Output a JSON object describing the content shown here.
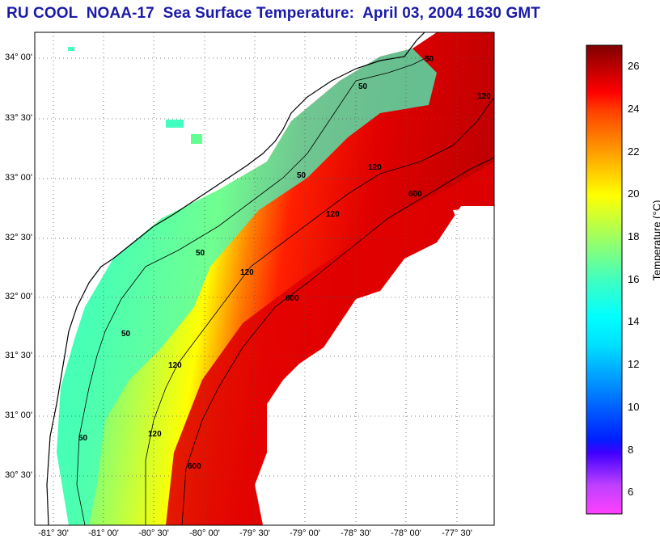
{
  "title": "RU COOL  NOAA-17  Sea Surface Temperature:  April 03, 2004 1630 GMT",
  "map": {
    "lat_ticks": [
      "34° 00'",
      "33° 30'",
      "33° 00'",
      "32° 30'",
      "32° 00'",
      "31° 30'",
      "31° 00'",
      "30° 30'"
    ],
    "lon_ticks": [
      "-81° 30'",
      "-81° 00'",
      "-80° 30'",
      "-80° 00'",
      "-79° 30'",
      "-79° 00'",
      "-78° 30'",
      "-78° 00'",
      "-77° 30'"
    ],
    "isobath_labels": [
      "50",
      "50",
      "50",
      "50",
      "50",
      "50",
      "120",
      "120",
      "120",
      "120",
      "120",
      "120",
      "600",
      "600",
      "600"
    ],
    "land_color": "#ffffff",
    "cloud_color": "#ffffff"
  },
  "colorbar": {
    "label": "Temperature (°C)",
    "ticks": [
      "26",
      "24",
      "22",
      "20",
      "18",
      "16",
      "14",
      "12",
      "10",
      "8",
      "6"
    ],
    "min": 5,
    "max": 27,
    "colors": [
      "#ff40ff",
      "#c040ff",
      "#4000ff",
      "#0040ff",
      "#0080ff",
      "#00c0ff",
      "#00ffff",
      "#40ffc0",
      "#80ff80",
      "#c0ff40",
      "#ffff00",
      "#ffc000",
      "#ff8000",
      "#ff4000",
      "#ff0000",
      "#c00000",
      "#800000"
    ]
  }
}
